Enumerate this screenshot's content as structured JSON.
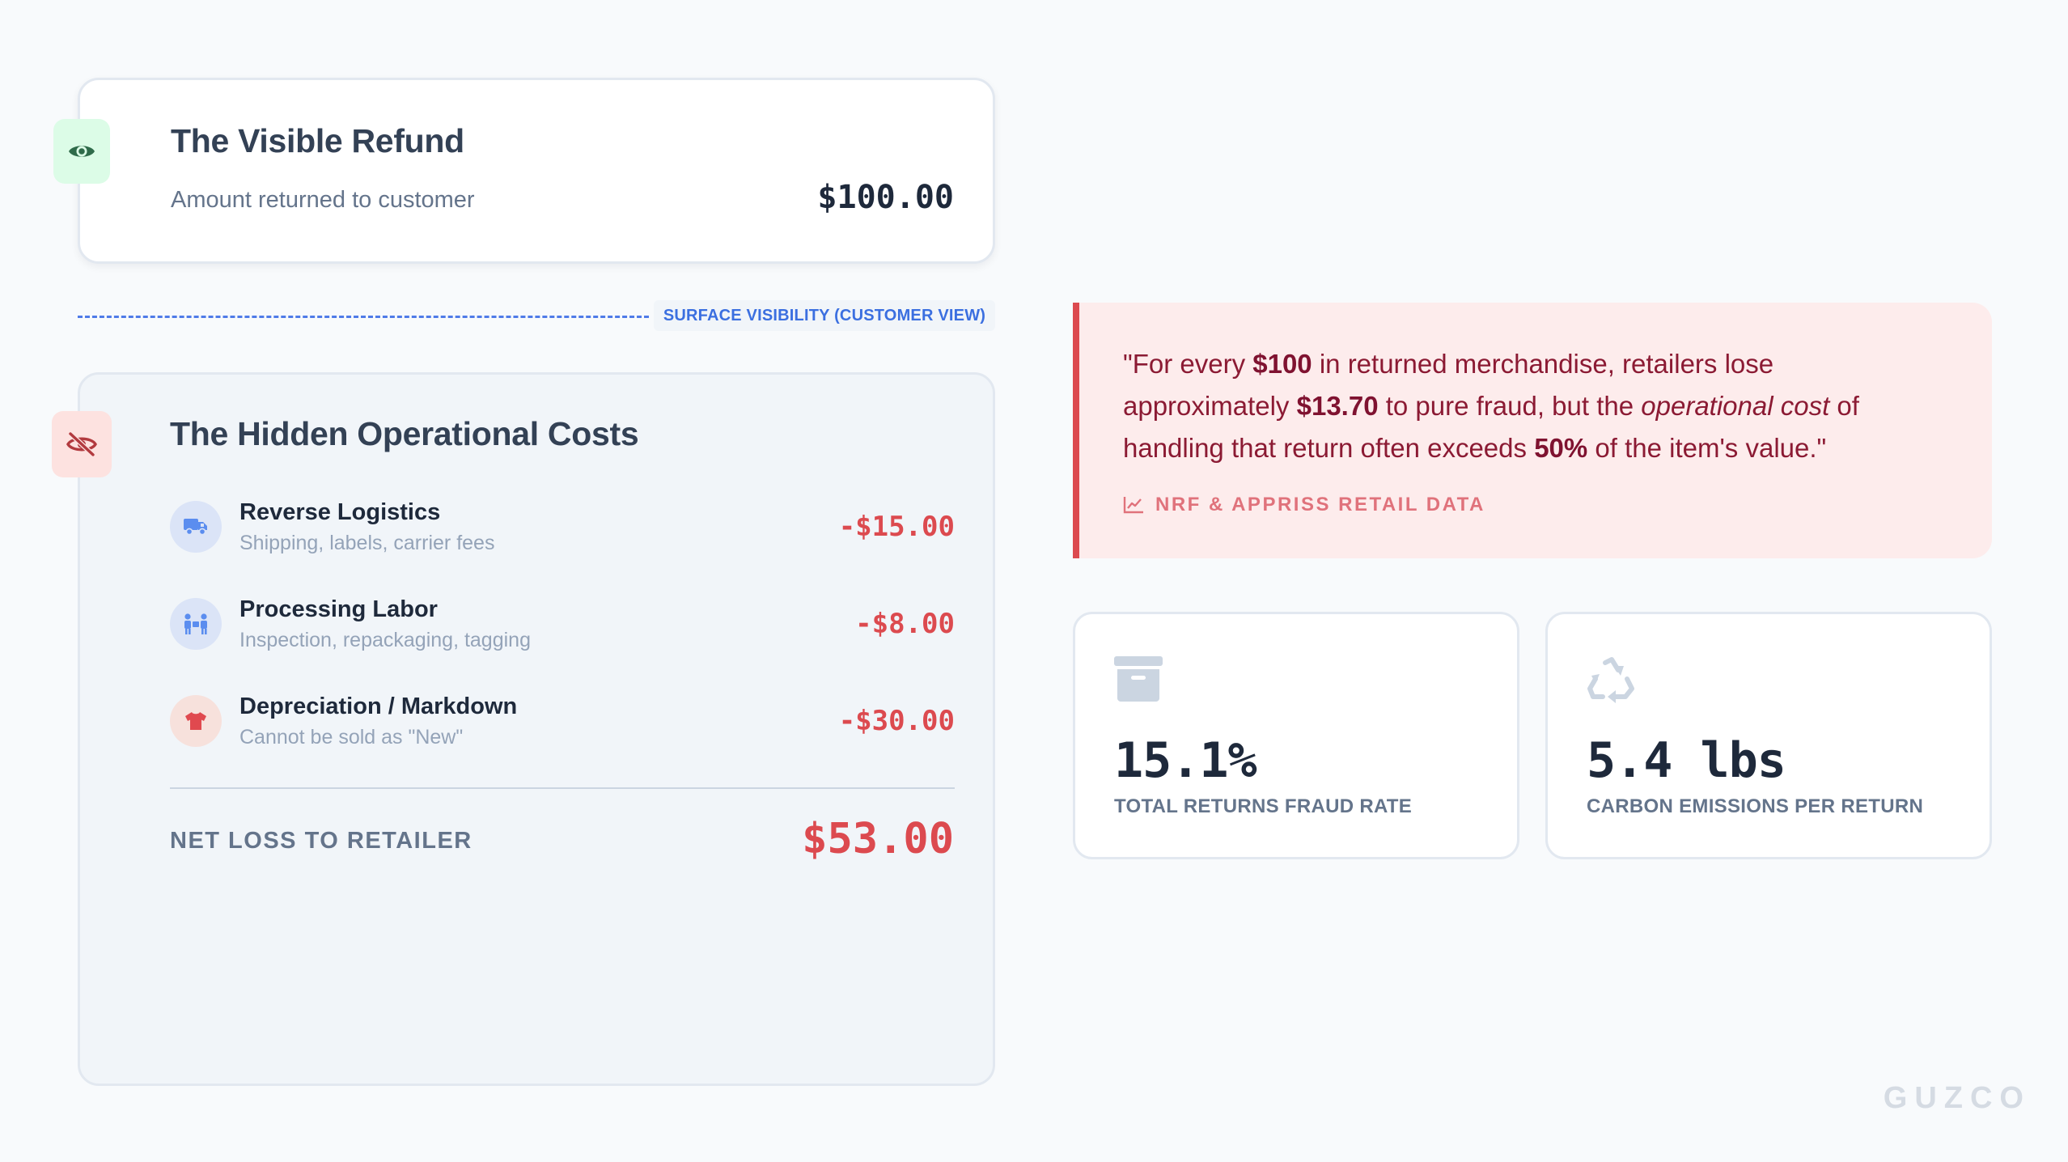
{
  "visible_refund": {
    "title": "The Visible Refund",
    "subtitle": "Amount returned to customer",
    "amount": "$100.00",
    "icon": "eye-icon"
  },
  "divider": {
    "label": "SURFACE VISIBILITY (CUSTOMER VIEW)"
  },
  "hidden_costs": {
    "title": "The Hidden Operational Costs",
    "icon": "eye-slash-icon",
    "items": [
      {
        "label": "Reverse Logistics",
        "description": "Shipping, labels, carrier fees",
        "amount": "-$15.00",
        "icon": "truck-icon"
      },
      {
        "label": "Processing Labor",
        "description": "Inspection, repackaging, tagging",
        "amount": "-$8.00",
        "icon": "people-carry-icon"
      },
      {
        "label": "Depreciation / Markdown",
        "description": "Cannot be sold as \"New\"",
        "amount": "-$30.00",
        "icon": "shirt-icon"
      }
    ],
    "net_label": "NET LOSS TO RETAILER",
    "net_amount": "$53.00"
  },
  "quote": {
    "open": "\"For every ",
    "b1": "$100",
    "t2": " in returned merchandise, retailers lose approximately ",
    "b2": "$13.70",
    "t3": " to pure fraud, but the ",
    "i1": "operational cost",
    "t4": " of handling that return often exceeds ",
    "b3": "50%",
    "t5": " of the item's value.\"",
    "source": "NRF & APPRISS RETAIL DATA",
    "source_icon": "chart-line-icon"
  },
  "stats": [
    {
      "value": "15.1%",
      "label": "TOTAL RETURNS FRAUD RATE",
      "icon": "archive-box-icon"
    },
    {
      "value": "5.4 lbs",
      "label": "CARBON EMISSIONS PER RETURN",
      "icon": "recycle-icon"
    }
  ],
  "brand": "GUZCO",
  "colors": {
    "accent_blue": "#3b6fe0",
    "loss_red": "#dc4a4f",
    "quote_text": "#8b1a33",
    "quote_bg": "#fdecec",
    "visible_badge_bg": "#dcfce7",
    "hidden_badge_bg": "#fde2e0"
  }
}
